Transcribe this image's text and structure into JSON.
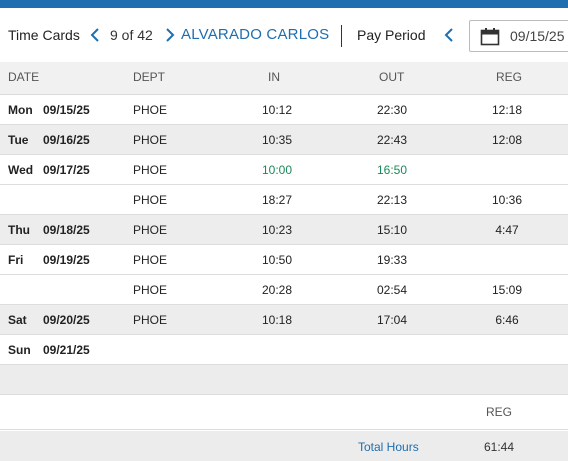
{
  "header": {
    "title": "Time Cards",
    "counter": "9 of 42",
    "employee_name": "ALVARADO CARLOS",
    "pay_period_label": "Pay Period",
    "period_start": "09/15/25",
    "accent_color": "#1e6eb0"
  },
  "columns": {
    "date": "DATE",
    "dept": "DEPT",
    "in": "IN",
    "out": "OUT",
    "reg": "REG"
  },
  "rows": [
    {
      "day": "Mon",
      "date": "09/15/25",
      "dept": "PHOE",
      "in": "10:12",
      "out": "22:30",
      "reg": "12:18"
    },
    {
      "day": "Tue",
      "date": "09/16/25",
      "dept": "PHOE",
      "in": "10:35",
      "out": "22:43",
      "reg": "12:08"
    },
    {
      "day": "Wed",
      "date": "09/17/25",
      "dept": "PHOE",
      "in": "10:00",
      "out": "16:50",
      "reg": ""
    },
    {
      "day": "",
      "date": "",
      "dept": "PHOE",
      "in": "18:27",
      "out": "22:13",
      "reg": "10:36"
    },
    {
      "day": "Thu",
      "date": "09/18/25",
      "dept": "PHOE",
      "in": "10:23",
      "out": "15:10",
      "reg": "4:47"
    },
    {
      "day": "Fri",
      "date": "09/19/25",
      "dept": "PHOE",
      "in": "10:50",
      "out": "19:33",
      "reg": ""
    },
    {
      "day": "",
      "date": "",
      "dept": "PHOE",
      "in": "20:28",
      "out": "02:54",
      "reg": "15:09"
    },
    {
      "day": "Sat",
      "date": "09/20/25",
      "dept": "PHOE",
      "in": "10:18",
      "out": "17:04",
      "reg": "6:46"
    },
    {
      "day": "Sun",
      "date": "09/21/25",
      "dept": "",
      "in": "",
      "out": "",
      "reg": ""
    }
  ],
  "summary": {
    "reg_header": "REG",
    "total_label": "Total Hours",
    "total_reg": "61:44"
  },
  "icons": {
    "prev": "chevron-left-icon",
    "next": "chevron-right-icon",
    "calendar": "calendar-icon"
  },
  "highlight_color": "#1a8a5a"
}
